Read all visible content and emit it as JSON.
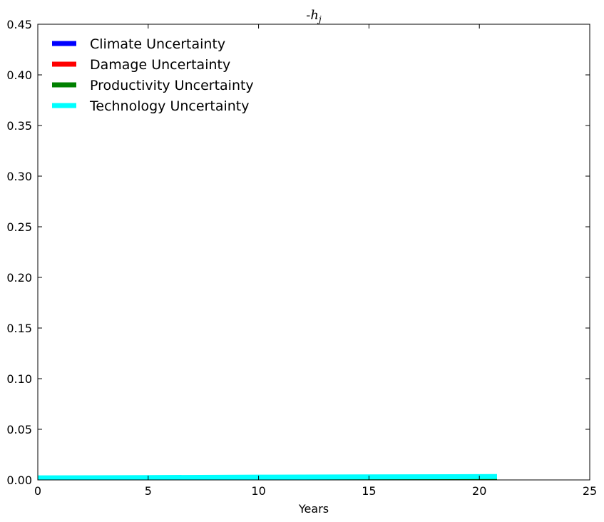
{
  "chart_data": {
    "type": "line",
    "title": "-h_j",
    "xlabel": "Years",
    "ylabel": "",
    "xlim": [
      0,
      25
    ],
    "ylim": [
      0,
      0.45
    ],
    "xticks": [
      0,
      5,
      10,
      15,
      20,
      25
    ],
    "xtick_labels": [
      "0",
      "5",
      "10",
      "15",
      "20",
      "25"
    ],
    "yticks": [
      0,
      0.05,
      0.1,
      0.15,
      0.2,
      0.25,
      0.3,
      0.35,
      0.4,
      0.45
    ],
    "ytick_labels": [
      "0.00",
      "0.05",
      "0.10",
      "0.15",
      "0.20",
      "0.25",
      "0.30",
      "0.35",
      "0.40",
      "0.45"
    ],
    "grid": false,
    "legend_position": "top-left",
    "series": [
      {
        "name": "Climate Uncertainty",
        "color": "#0000ff",
        "x": [
          0,
          20.8
        ],
        "y": [
          0.0,
          0.0
        ]
      },
      {
        "name": "Damage Uncertainty",
        "color": "#ff0000",
        "x": [
          0,
          20.8
        ],
        "y": [
          0.0,
          0.0
        ]
      },
      {
        "name": "Productivity Uncertainty",
        "color": "#008000",
        "x": [
          0,
          20.8
        ],
        "y": [
          0.0,
          0.0
        ]
      },
      {
        "name": "Technology Uncertainty",
        "color": "#00ffff",
        "x": [
          0,
          5,
          10,
          15,
          20.8
        ],
        "y": [
          0.002,
          0.0023,
          0.0027,
          0.003,
          0.0033
        ]
      }
    ]
  }
}
